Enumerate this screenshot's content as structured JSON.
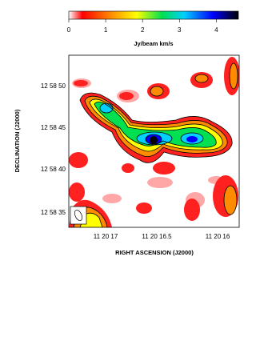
{
  "colorbar": {
    "label": "Jy/beam km/s",
    "lim": [
      0,
      4.6
    ],
    "ticks": [
      0,
      1,
      2,
      3,
      4
    ]
  },
  "x_axis": {
    "label": "RIGHT ASCENSION (J2000)",
    "ticks": [
      "11 20 17",
      "11 20 16.5",
      "11 20 16"
    ]
  },
  "y_axis": {
    "label": "DECLINATION (J2000)",
    "ticks": [
      "12 58 50",
      "12 58 45",
      "12 58 40",
      "12 58 35"
    ]
  }
}
